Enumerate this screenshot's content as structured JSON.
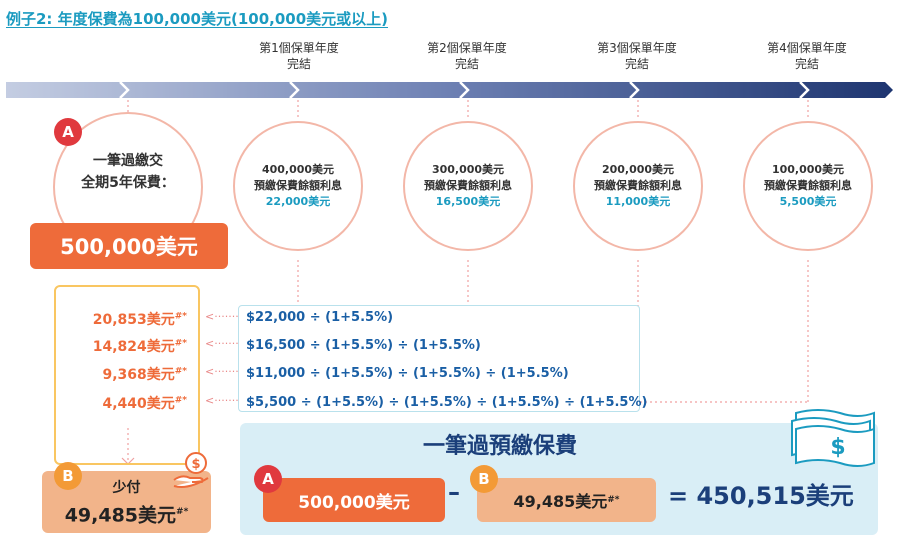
{
  "title": "例子2: 年度保費為100,000美元(100,000美元或以上)",
  "years": [
    {
      "line1": "第1個保單年度",
      "line2": "完結"
    },
    {
      "line1": "第2個保單年度",
      "line2": "完結"
    },
    {
      "line1": "第3個保單年度",
      "line2": "完結"
    },
    {
      "line1": "第4個保單年度",
      "line2": "完結"
    }
  ],
  "badge_a": "A",
  "badge_b": "B",
  "prepay": {
    "line1": "一筆過繳交",
    "line2": "全期5年保費：",
    "amount": "500,000美元"
  },
  "circles": [
    {
      "balance": "400,000美元",
      "label": "預繳保費餘額利息",
      "interest": "22,000美元"
    },
    {
      "balance": "300,000美元",
      "label": "預繳保費餘額利息",
      "interest": "16,500美元"
    },
    {
      "balance": "200,000美元",
      "label": "預繳保費餘額利息",
      "interest": "11,000美元"
    },
    {
      "balance": "100,000美元",
      "label": "預繳保費餘額利息",
      "interest": "5,500美元"
    }
  ],
  "present_values": [
    {
      "value": "20,853美元",
      "mark": "#*"
    },
    {
      "value": "14,824美元",
      "mark": "#*"
    },
    {
      "value": "9,368美元",
      "mark": "#*"
    },
    {
      "value": "4,440美元",
      "mark": "#*"
    }
  ],
  "formulas": [
    "$22,000 ÷ (1+5.5%)",
    "$16,500 ÷ (1+5.5%) ÷ (1+5.5%)",
    "$11,000 ÷ (1+5.5%) ÷ (1+5.5%) ÷ (1+5.5%)",
    "$5,500 ÷ (1+5.5%) ÷ (1+5.5%) ÷ (1+5.5%) ÷ (1+5.5%)"
  ],
  "less_pay": {
    "label": "少付",
    "amount": "49,485美元",
    "mark": "#*"
  },
  "summary": {
    "title": "一筆過預繳保費",
    "a_amount": "500,000美元",
    "minus": "–",
    "b_amount": "49,485美元",
    "b_mark": "#*",
    "result": "= 450,515美元"
  },
  "icons": {
    "coin_hand": "coin-in-hand-icon",
    "money": "dollar-bills-icon"
  },
  "colors": {
    "blue_title": "#1b9bc0",
    "orange": "#ee6b3a",
    "peach": "#f2b48a",
    "navy": "#1b3f7a",
    "panel": "#d9eef6"
  }
}
